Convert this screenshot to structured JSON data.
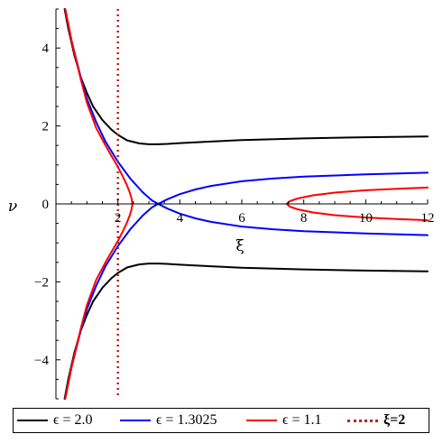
{
  "chart_data": {
    "type": "line",
    "title": "",
    "xlabel": "ξ",
    "ylabel": "ν",
    "xlim": [
      0,
      12
    ],
    "ylim": [
      -5,
      5
    ],
    "x_ticks": [
      2,
      4,
      6,
      8,
      10,
      12
    ],
    "x_tick_labels": [
      "2",
      "4",
      "6",
      "8",
      "10",
      "12"
    ],
    "y_ticks": [
      -4,
      -2,
      0,
      2,
      4
    ],
    "y_tick_labels": [
      "−4",
      "−2",
      "0",
      "2",
      "4"
    ],
    "grid": false,
    "legend_position": "bottom",
    "series": [
      {
        "name": "ϵ = 2.0",
        "color": "#000000",
        "style": "solid",
        "x": [
          0.28,
          0.4,
          0.6,
          0.8,
          1.0,
          1.2,
          1.5,
          1.8,
          2.0,
          2.3,
          2.7,
          3.0,
          3.3,
          3.6,
          4.0,
          5.0,
          6.0,
          8.0,
          10.0,
          12.0
        ],
        "y": [
          5.0,
          4.5,
          3.8,
          3.25,
          2.85,
          2.5,
          2.15,
          1.9,
          1.77,
          1.63,
          1.55,
          1.53,
          1.53,
          1.54,
          1.56,
          1.6,
          1.64,
          1.68,
          1.71,
          1.73
        ]
      },
      {
        "name": "ϵ = 2.0 (lower branch)",
        "color": "#000000",
        "style": "solid",
        "x": [
          0.28,
          0.4,
          0.6,
          0.8,
          1.0,
          1.2,
          1.5,
          1.8,
          2.0,
          2.3,
          2.7,
          3.0,
          3.3,
          3.6,
          4.0,
          5.0,
          6.0,
          8.0,
          10.0,
          12.0
        ],
        "y": [
          -5.0,
          -4.5,
          -3.8,
          -3.25,
          -2.85,
          -2.5,
          -2.15,
          -1.9,
          -1.77,
          -1.63,
          -1.55,
          -1.53,
          -1.53,
          -1.54,
          -1.56,
          -1.6,
          -1.64,
          -1.68,
          -1.71,
          -1.73
        ]
      },
      {
        "name": "ϵ = 1.3025",
        "color": "#0000ff",
        "style": "solid",
        "x": [
          0.3,
          0.5,
          0.8,
          1.0,
          1.3,
          1.6,
          2.0,
          2.4,
          2.8,
          3.1,
          3.3,
          3.6,
          4.0,
          4.5,
          5.0,
          6.0,
          7.0,
          8.0,
          10.0,
          12.0
        ],
        "y": [
          5.0,
          4.2,
          3.25,
          2.7,
          2.1,
          1.6,
          1.08,
          0.65,
          0.3,
          0.09,
          0.0,
          -0.12,
          -0.25,
          -0.37,
          -0.46,
          -0.58,
          -0.65,
          -0.7,
          -0.76,
          -0.8
        ]
      },
      {
        "name": "ϵ = 1.3025 (mirror branch)",
        "color": "#0000ff",
        "style": "solid",
        "x": [
          0.3,
          0.5,
          0.8,
          1.0,
          1.3,
          1.6,
          2.0,
          2.4,
          2.8,
          3.1,
          3.3,
          3.6,
          4.0,
          4.5,
          5.0,
          6.0,
          7.0,
          8.0,
          10.0,
          12.0
        ],
        "y": [
          -5.0,
          -4.2,
          -3.25,
          -2.7,
          -2.1,
          -1.6,
          -1.08,
          -0.65,
          -0.3,
          -0.09,
          0.0,
          0.12,
          0.25,
          0.37,
          0.46,
          0.58,
          0.65,
          0.7,
          0.76,
          0.8
        ]
      },
      {
        "name": "ϵ = 1.1",
        "color": "#ff0000",
        "style": "solid",
        "x": [
          0.3,
          0.5,
          0.8,
          1.0,
          1.3,
          1.6,
          1.8,
          2.0,
          2.15,
          2.28,
          2.38,
          2.44,
          2.47,
          2.44,
          2.38,
          2.28,
          2.15,
          2.0,
          1.8,
          1.6,
          1.3,
          1.0,
          0.8,
          0.5,
          0.3
        ],
        "y": [
          5.0,
          4.2,
          3.2,
          2.6,
          1.95,
          1.5,
          1.22,
          0.95,
          0.72,
          0.5,
          0.3,
          0.14,
          0.0,
          -0.14,
          -0.3,
          -0.5,
          -0.72,
          -0.95,
          -1.22,
          -1.5,
          -1.95,
          -2.6,
          -3.2,
          -4.2,
          -5.0
        ]
      },
      {
        "name": "ϵ = 1.1 (right branch)",
        "color": "#ff0000",
        "style": "solid",
        "x": [
          12.0,
          11.0,
          10.0,
          9.0,
          8.3,
          7.8,
          7.55,
          7.45,
          7.55,
          7.8,
          8.3,
          9.0,
          10.0,
          11.0,
          12.0
        ],
        "y": [
          0.42,
          0.39,
          0.35,
          0.29,
          0.22,
          0.14,
          0.07,
          0.0,
          -0.07,
          -0.14,
          -0.22,
          -0.29,
          -0.35,
          -0.39,
          -0.42
        ]
      },
      {
        "name": "ξ=2",
        "color": "#b22222",
        "style": "dotted",
        "x": [
          2,
          2
        ],
        "y": [
          5,
          -5
        ]
      }
    ]
  },
  "legend": {
    "items": [
      {
        "label": "ϵ = 2.0",
        "color": "#000000",
        "style": "solid"
      },
      {
        "label": "ϵ  = 1.3025",
        "color": "#0000ff",
        "style": "solid"
      },
      {
        "label": "ϵ  = 1.1",
        "color": "#ff0000",
        "style": "solid"
      },
      {
        "label": "ξ=2",
        "color": "#b22222",
        "style": "dotted"
      }
    ]
  }
}
